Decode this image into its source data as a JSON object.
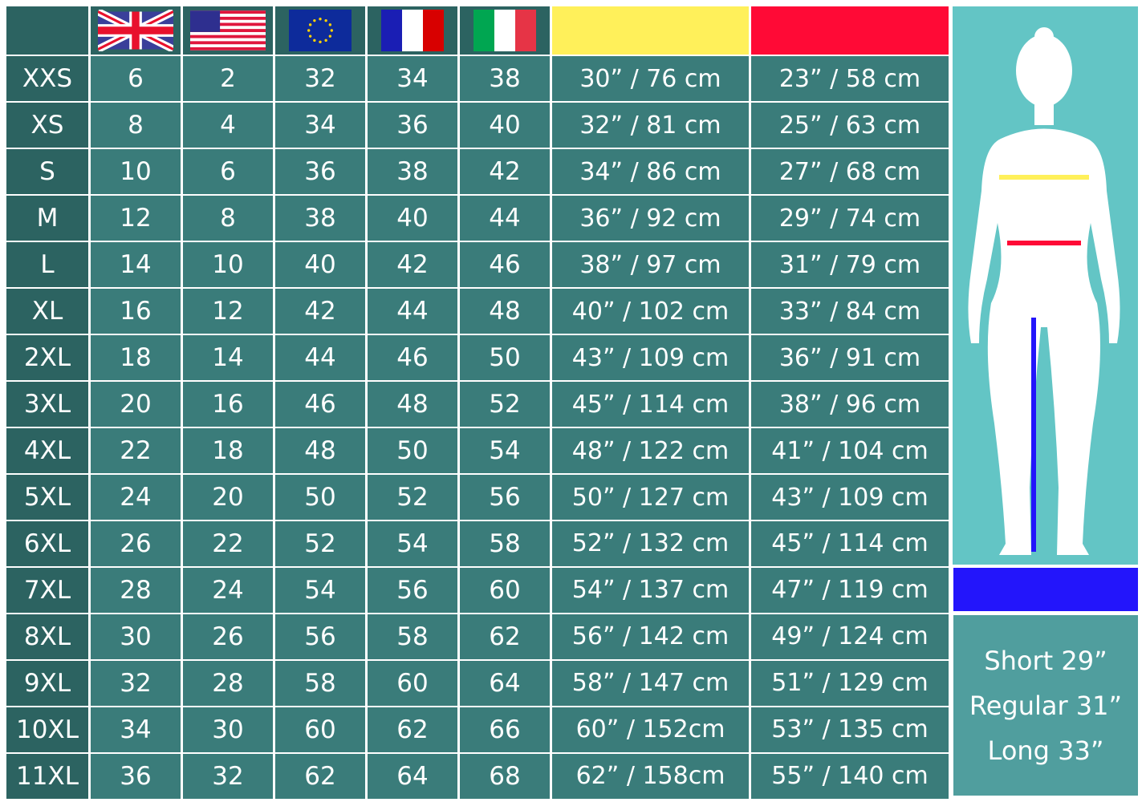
{
  "colors": {
    "chest": "#fff05a",
    "waist": "#ff0a36",
    "inseam": "#2315fb",
    "cell": "#3a7c7a",
    "size_cell": "#2c6361",
    "figure_bg": "#63c5c5",
    "length_bg": "#509e9e"
  },
  "header": {
    "flags": [
      "uk-flag",
      "us-flag",
      "eu-flag",
      "france-flag",
      "italy-flag"
    ]
  },
  "rows": [
    {
      "size": "XXS",
      "uk": "6",
      "us": "2",
      "eu": "32",
      "fr": "34",
      "it": "38",
      "chest": "30” / 76 cm",
      "waist": "23” / 58 cm"
    },
    {
      "size": "XS",
      "uk": "8",
      "us": "4",
      "eu": "34",
      "fr": "36",
      "it": "40",
      "chest": "32” / 81 cm",
      "waist": "25” / 63 cm"
    },
    {
      "size": "S",
      "uk": "10",
      "us": "6",
      "eu": "36",
      "fr": "38",
      "it": "42",
      "chest": "34” / 86 cm",
      "waist": "27” / 68 cm"
    },
    {
      "size": "M",
      "uk": "12",
      "us": "8",
      "eu": "38",
      "fr": "40",
      "it": "44",
      "chest": "36” / 92 cm",
      "waist": "29” / 74 cm"
    },
    {
      "size": "L",
      "uk": "14",
      "us": "10",
      "eu": "40",
      "fr": "42",
      "it": "46",
      "chest": "38” / 97 cm",
      "waist": "31” / 79 cm"
    },
    {
      "size": "XL",
      "uk": "16",
      "us": "12",
      "eu": "42",
      "fr": "44",
      "it": "48",
      "chest": "40” / 102 cm",
      "waist": "33” / 84 cm"
    },
    {
      "size": "2XL",
      "uk": "18",
      "us": "14",
      "eu": "44",
      "fr": "46",
      "it": "50",
      "chest": "43” / 109 cm",
      "waist": "36” / 91 cm"
    },
    {
      "size": "3XL",
      "uk": "20",
      "us": "16",
      "eu": "46",
      "fr": "48",
      "it": "52",
      "chest": "45” / 114 cm",
      "waist": "38” / 96 cm"
    },
    {
      "size": "4XL",
      "uk": "22",
      "us": "18",
      "eu": "48",
      "fr": "50",
      "it": "54",
      "chest": "48” / 122 cm",
      "waist": "41” / 104 cm"
    },
    {
      "size": "5XL",
      "uk": "24",
      "us": "20",
      "eu": "50",
      "fr": "52",
      "it": "56",
      "chest": "50” / 127 cm",
      "waist": "43” / 109 cm"
    },
    {
      "size": "6XL",
      "uk": "26",
      "us": "22",
      "eu": "52",
      "fr": "54",
      "it": "58",
      "chest": "52” / 132 cm",
      "waist": "45” / 114 cm"
    },
    {
      "size": "7XL",
      "uk": "28",
      "us": "24",
      "eu": "54",
      "fr": "56",
      "it": "60",
      "chest": "54” / 137 cm",
      "waist": "47” / 119 cm"
    },
    {
      "size": "8XL",
      "uk": "30",
      "us": "26",
      "eu": "56",
      "fr": "58",
      "it": "62",
      "chest": "56” / 142 cm",
      "waist": "49” / 124 cm"
    },
    {
      "size": "9XL",
      "uk": "32",
      "us": "28",
      "eu": "58",
      "fr": "60",
      "it": "64",
      "chest": "58” / 147 cm",
      "waist": "51” / 129 cm"
    },
    {
      "size": "10XL",
      "uk": "34",
      "us": "30",
      "eu": "60",
      "fr": "62",
      "it": "66",
      "chest": "60” / 152cm",
      "waist": "53” / 135 cm"
    },
    {
      "size": "11XL",
      "uk": "36",
      "us": "32",
      "eu": "62",
      "fr": "64",
      "it": "68",
      "chest": "62” / 158cm",
      "waist": "55” / 140 cm"
    }
  ],
  "lengths": [
    "Short 29”",
    "Regular 31”",
    "Long 33”"
  ]
}
